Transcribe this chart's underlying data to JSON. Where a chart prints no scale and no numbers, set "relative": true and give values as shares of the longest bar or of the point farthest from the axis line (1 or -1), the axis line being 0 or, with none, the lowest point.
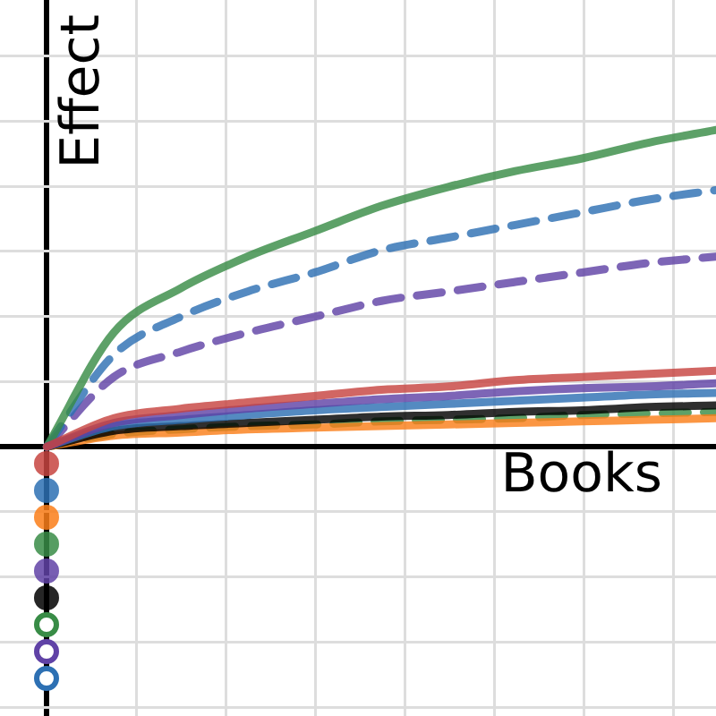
{
  "chart_data": {
    "type": "line",
    "relative": true,
    "xlabel": "Books",
    "ylabel": "Effect",
    "grid": true,
    "legend": false,
    "marker": "none",
    "categories": [
      null,
      null,
      null,
      null,
      null,
      null,
      null,
      null,
      null,
      null,
      null
    ],
    "series": [
      {
        "color": "#c74440",
        "values": [
          0,
          0.09,
          0.12,
          0.14,
          0.16,
          0.18,
          0.19,
          0.21,
          0.22,
          0.23,
          0.24
        ]
      },
      {
        "color": "#6042a6",
        "values": [
          0,
          0.075,
          0.1,
          0.12,
          0.135,
          0.15,
          0.16,
          0.175,
          0.185,
          0.19,
          0.2
        ]
      },
      {
        "color": "#2d70b3",
        "values": [
          0,
          0.065,
          0.085,
          0.1,
          0.115,
          0.125,
          0.135,
          0.145,
          0.155,
          0.165,
          0.17
        ]
      },
      {
        "color": "#000000",
        "values": [
          0,
          0.05,
          0.065,
          0.075,
          0.085,
          0.095,
          0.1,
          0.11,
          0.115,
          0.125,
          0.13
        ]
      },
      {
        "color": "#fa7e19",
        "values": [
          0,
          0.035,
          0.045,
          0.055,
          0.06,
          0.065,
          0.07,
          0.075,
          0.08,
          0.085,
          0.09
        ]
      },
      {
        "color": "#388c46",
        "line_style": "dashed",
        "values": [
          0,
          0.04,
          0.055,
          0.065,
          0.07,
          0.08,
          0.085,
          0.09,
          0.1,
          0.105,
          0.11
        ]
      },
      {
        "color": "#388c46",
        "values": [
          0,
          0.36,
          0.5,
          0.6,
          0.68,
          0.76,
          0.82,
          0.87,
          0.91,
          0.96,
          1
        ]
      },
      {
        "color": "#2d70b3",
        "line_style": "dashed",
        "values": [
          0,
          0.29,
          0.41,
          0.49,
          0.55,
          0.62,
          0.66,
          0.7,
          0.74,
          0.78,
          0.81
        ]
      },
      {
        "color": "#6042a6",
        "line_style": "dashed",
        "values": [
          0,
          0.22,
          0.3,
          0.36,
          0.41,
          0.46,
          0.49,
          0.52,
          0.55,
          0.58,
          0.6
        ]
      }
    ]
  }
}
